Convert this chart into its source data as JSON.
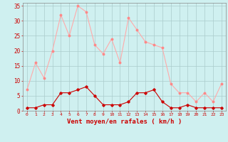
{
  "x": [
    0,
    1,
    2,
    3,
    4,
    5,
    6,
    7,
    8,
    9,
    10,
    11,
    12,
    13,
    14,
    15,
    16,
    17,
    18,
    19,
    20,
    21,
    22,
    23
  ],
  "rafales": [
    7,
    16,
    11,
    20,
    32,
    25,
    35,
    33,
    22,
    19,
    24,
    16,
    31,
    27,
    23,
    22,
    21,
    9,
    6,
    6,
    3,
    6,
    3,
    9
  ],
  "moyen": [
    1,
    1,
    2,
    2,
    6,
    6,
    7,
    8,
    5,
    2,
    2,
    2,
    3,
    6,
    6,
    7,
    3,
    1,
    1,
    2,
    1,
    1,
    1,
    1
  ],
  "xlabel": "Vent moyen/en rafales ( km/h )",
  "ylim": [
    0,
    36
  ],
  "yticks": [
    0,
    5,
    10,
    15,
    20,
    25,
    30,
    35
  ],
  "bg_color": "#cff0f0",
  "grid_color": "#aacccc",
  "line_color_rafales": "#ffaaaa",
  "line_color_moyen": "#cc0000",
  "marker_color_rafales": "#ff8888",
  "marker_color_moyen": "#cc0000",
  "xlabel_color": "#cc0000",
  "tick_color": "#cc0000",
  "spine_color": "#888888"
}
